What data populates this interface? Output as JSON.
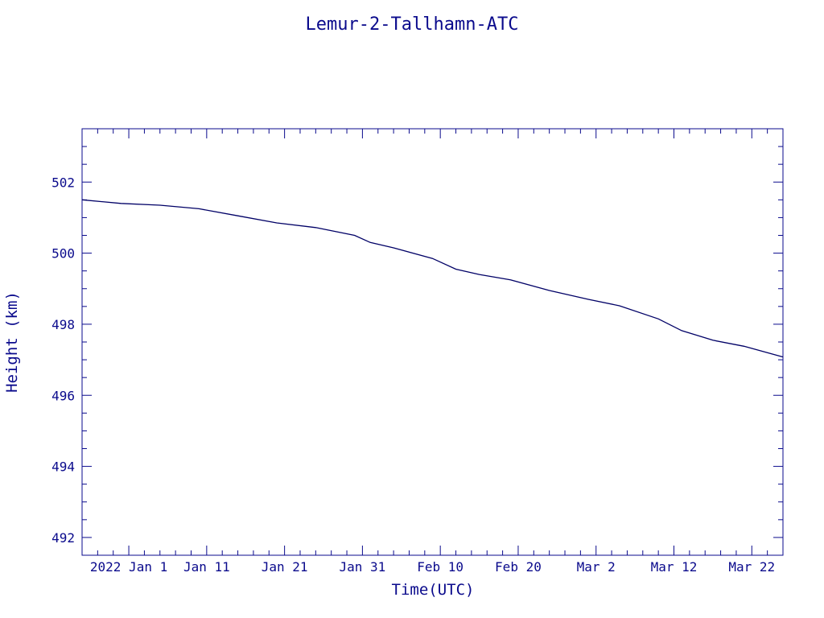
{
  "chart_data": {
    "type": "line",
    "title": "Lemur-2-Tallhamn-ATC",
    "xlabel": "Time(UTC)",
    "ylabel": "Height (km)",
    "x_tick_labels": [
      "2022 Jan  1",
      "Jan 11",
      "Jan 21",
      "Jan 31",
      "Feb 10",
      "Feb 20",
      "Mar  2",
      "Mar 12",
      "Mar 22"
    ],
    "x_ticks": [
      "2022-01-01",
      "2022-01-11",
      "2022-01-21",
      "2022-01-31",
      "2022-02-10",
      "2022-02-20",
      "2022-03-02",
      "2022-03-12",
      "2022-03-22"
    ],
    "xlim": [
      "2021-12-26",
      "2022-03-26"
    ],
    "ylim": [
      491.5,
      503.5
    ],
    "y_ticks": [
      492,
      494,
      496,
      498,
      500,
      502
    ],
    "series": [
      {
        "x": [
          "2021-12-26",
          "2021-12-31",
          "2022-01-05",
          "2022-01-10",
          "2022-01-15",
          "2022-01-20",
          "2022-01-25",
          "2022-01-30",
          "2022-02-01",
          "2022-02-04",
          "2022-02-09",
          "2022-02-12",
          "2022-02-15",
          "2022-02-19",
          "2022-02-24",
          "2022-03-01",
          "2022-03-05",
          "2022-03-10",
          "2022-03-13",
          "2022-03-17",
          "2022-03-21",
          "2022-03-26"
        ],
        "y": [
          501.5,
          501.4,
          501.35,
          501.25,
          501.05,
          500.85,
          500.72,
          500.5,
          500.3,
          500.15,
          499.85,
          499.55,
          499.4,
          499.25,
          498.95,
          498.7,
          498.52,
          498.15,
          497.82,
          497.55,
          497.38,
          497.08
        ]
      }
    ],
    "grid": false,
    "colors": {
      "axis": "#0a0a8c",
      "line": "#000066",
      "background": "#ffffff"
    }
  }
}
